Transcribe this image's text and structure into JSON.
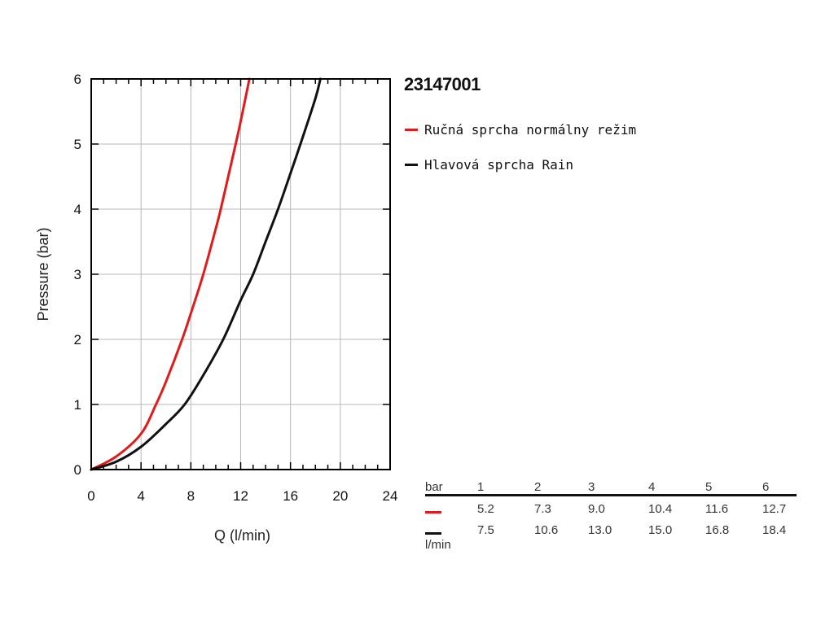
{
  "chart_data": {
    "type": "line",
    "title": "23147001",
    "xlabel": "Q (l/min)",
    "ylabel": "Pressure (bar)",
    "xlim": [
      0,
      24
    ],
    "ylim": [
      0,
      6
    ],
    "x_ticks": [
      0,
      4,
      8,
      12,
      16,
      20,
      24
    ],
    "y_ticks": [
      0,
      1,
      2,
      3,
      4,
      5,
      6
    ],
    "grid": true,
    "legend_position": "right",
    "series": [
      {
        "name": "Ručná sprcha normálny režim",
        "color": "#e11b1b",
        "x": [
          0,
          2,
          4,
          5.2,
          6,
          7.3,
          8,
          9,
          10,
          10.4,
          11,
          11.6,
          12,
          12.7
        ],
        "y": [
          0,
          0.2,
          0.55,
          1,
          1.35,
          2,
          2.4,
          3,
          3.7,
          4,
          4.5,
          5,
          5.35,
          6
        ]
      },
      {
        "name": "Hlavová sprcha Rain",
        "color": "#111111",
        "x": [
          0,
          2,
          4,
          6,
          7.5,
          9,
          10.6,
          12,
          13,
          14,
          15,
          16,
          16.8,
          18,
          18.4
        ],
        "y": [
          0,
          0.12,
          0.35,
          0.7,
          1,
          1.45,
          2,
          2.6,
          3,
          3.5,
          4,
          4.55,
          5,
          5.7,
          6
        ]
      }
    ]
  },
  "table": {
    "header_label": "bar",
    "header_values": [
      "1",
      "2",
      "3",
      "4",
      "5",
      "6"
    ],
    "unit_label": "l/min",
    "rows": [
      {
        "color": "#e11b1b",
        "values": [
          "5.2",
          "7.3",
          "9.0",
          "10.4",
          "11.6",
          "12.7"
        ]
      },
      {
        "color": "#111111",
        "values": [
          "7.5",
          "10.6",
          "13.0",
          "15.0",
          "16.8",
          "18.4"
        ]
      }
    ]
  }
}
